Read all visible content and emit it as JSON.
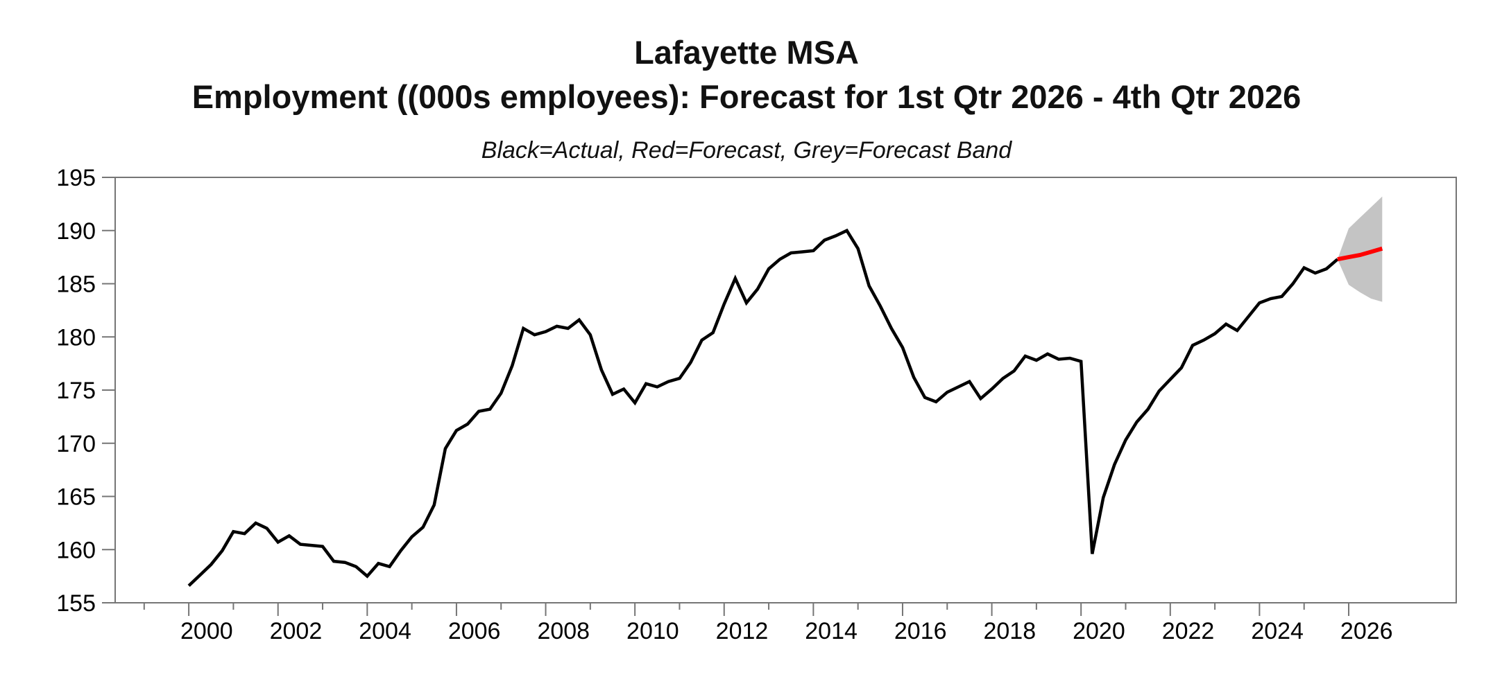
{
  "header": {
    "title_line1": "Lafayette MSA",
    "title_line2": "Employment ((000s employees): Forecast for 1st Qtr 2026 - 4th Qtr 2026",
    "subtitle": "Black=Actual, Red=Forecast, Grey=Forecast Band"
  },
  "chart_data": {
    "type": "line",
    "title": "Lafayette MSA",
    "subtitle": "Employment ((000s employees): Forecast for 1st Qtr 2026 - 4th Qtr 2026",
    "legend_note": "Black=Actual, Red=Forecast, Grey=Forecast Band",
    "xlabel": "",
    "ylabel": "",
    "unit": "000s employees",
    "frequency": "quarterly",
    "grid": false,
    "ylim": [
      155,
      195
    ],
    "yticks": [
      155,
      160,
      165,
      170,
      175,
      180,
      185,
      190,
      195
    ],
    "x_domain": [
      1998.35,
      2028.41
    ],
    "xticks_major": [
      2000,
      2002,
      2004,
      2006,
      2008,
      2010,
      2012,
      2014,
      2016,
      2018,
      2020,
      2022,
      2024,
      2026
    ],
    "xticks_minor": [
      1999,
      2001,
      2003,
      2005,
      2007,
      2009,
      2011,
      2013,
      2015,
      2017,
      2019,
      2021,
      2023,
      2025
    ],
    "series": [
      {
        "name": "Actual",
        "color": "#000000",
        "start_year": 2000.0,
        "step_years": 0.25,
        "values": [
          156.6,
          157.6,
          158.6,
          159.9,
          161.7,
          161.5,
          162.5,
          162.0,
          160.7,
          161.3,
          160.5,
          160.4,
          160.3,
          158.9,
          158.8,
          158.4,
          157.5,
          158.7,
          158.4,
          159.9,
          161.2,
          162.1,
          164.2,
          169.5,
          171.2,
          171.8,
          173.0,
          173.2,
          174.7,
          177.3,
          180.8,
          180.2,
          180.5,
          181.0,
          180.8,
          181.6,
          180.2,
          176.9,
          174.6,
          175.1,
          173.8,
          175.6,
          175.3,
          175.8,
          176.1,
          177.6,
          179.7,
          180.4,
          183.1,
          185.5,
          183.2,
          184.5,
          186.4,
          187.3,
          187.9,
          188.0,
          188.1,
          189.1,
          189.5,
          190.0,
          188.3,
          184.8,
          182.9,
          180.8,
          179.0,
          176.2,
          174.3,
          173.9,
          174.8,
          175.3,
          175.8,
          174.2,
          175.1,
          176.1,
          176.8,
          178.2,
          177.8,
          178.4,
          177.9,
          178.0,
          177.7,
          159.6,
          164.9,
          168.0,
          170.3,
          172.0,
          173.2,
          174.9,
          176.0,
          177.1,
          179.2,
          179.7,
          180.3,
          181.2,
          180.6,
          181.9,
          183.2,
          183.6,
          183.8,
          185.0,
          186.5,
          186.0,
          186.4,
          187.3
        ]
      },
      {
        "name": "Forecast",
        "color": "#fe0000",
        "start_year": 2026.0,
        "step_years": 0.25,
        "connects_from": {
          "year": 2025.75,
          "value": 187.3
        },
        "values": [
          187.5,
          187.7,
          188.0,
          188.3
        ]
      }
    ],
    "band": {
      "name": "Forecast Band",
      "color": "#c4c4c4",
      "start_year": 2026.0,
      "step_years": 0.25,
      "anchor": {
        "year": 2025.75,
        "value": 187.3
      },
      "upper": [
        190.2,
        191.2,
        192.2,
        193.2
      ],
      "lower": [
        184.9,
        184.2,
        183.6,
        183.3
      ]
    },
    "axis_color": "#757575",
    "tick_label_color": "#000000"
  }
}
